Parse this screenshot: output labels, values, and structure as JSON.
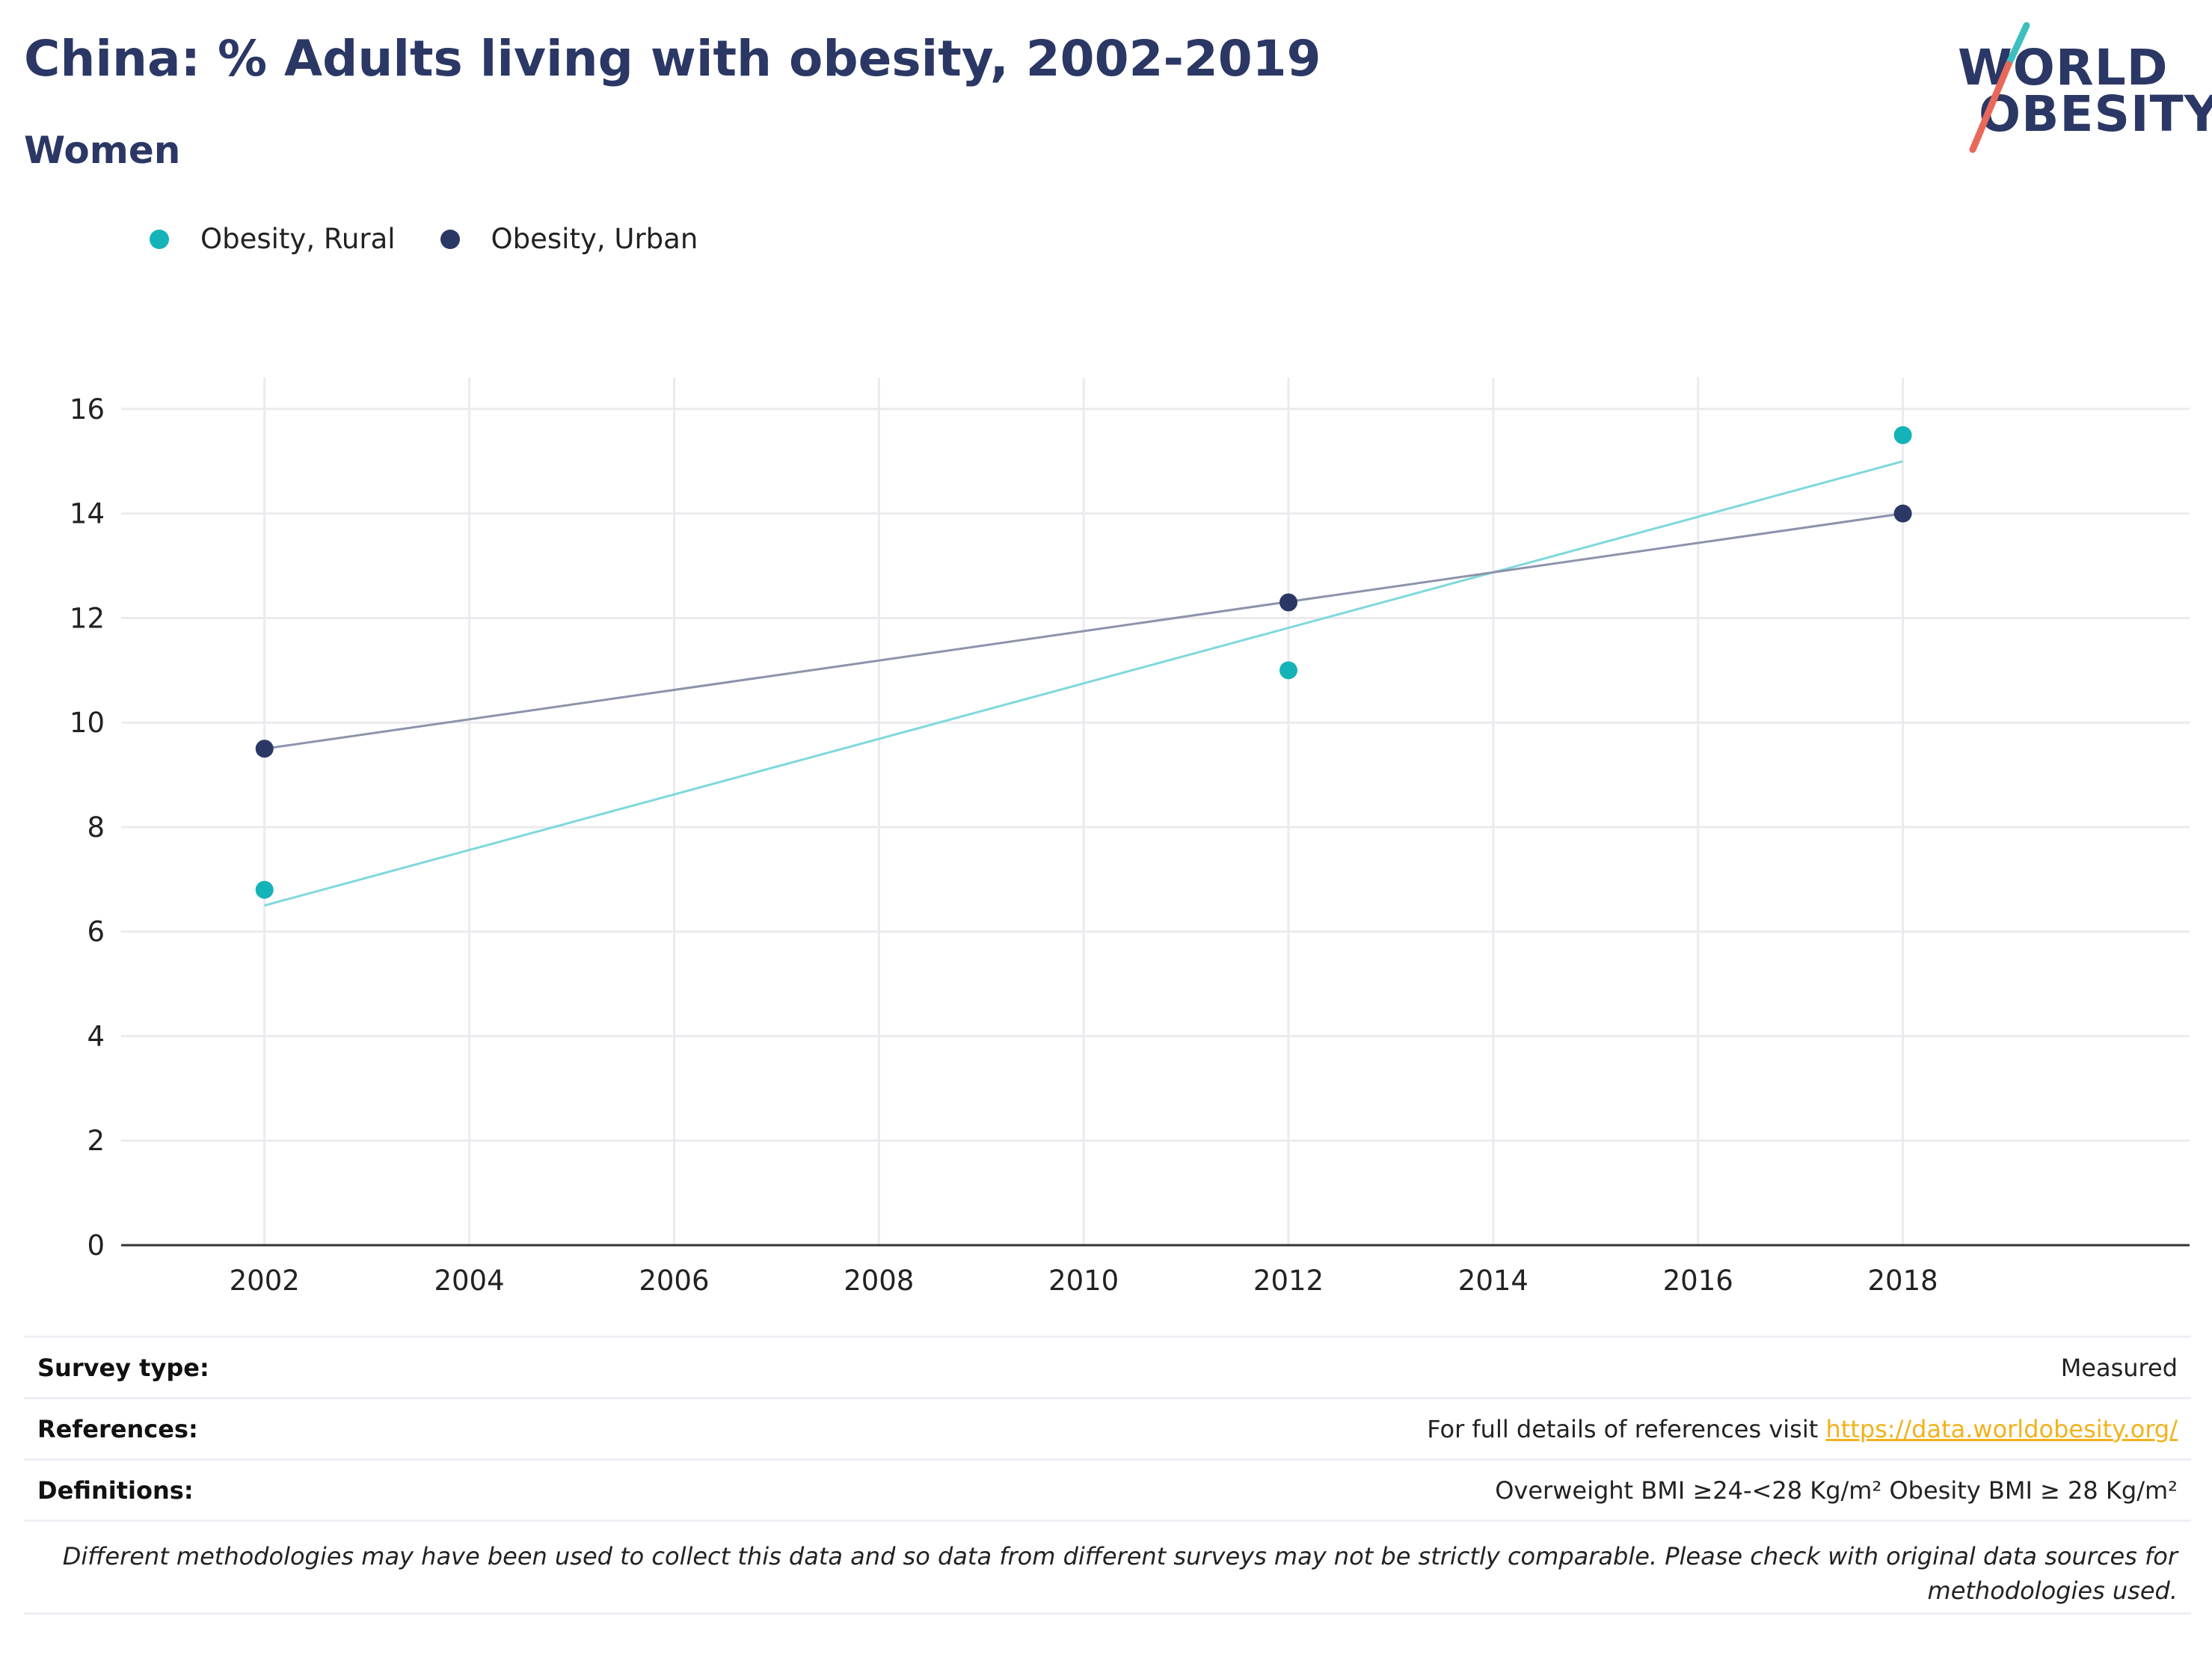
{
  "header": {
    "title": "China: % Adults living with obesity, 2002-2019",
    "subtitle": "Women"
  },
  "logo": {
    "line1": "WORLD",
    "line2": "OBESITY",
    "accent_teal": "#3dbfbf",
    "accent_coral": "#e8685a"
  },
  "colors": {
    "rural": "#14b3b8",
    "rural_trend": "#7fd8dc",
    "urban": "#2b3764",
    "urban_trend": "#8d93aa",
    "grid": "#ebebef",
    "axis": "#333333"
  },
  "chart_data": {
    "type": "scatter",
    "title": "China: % Adults living with obesity, 2002-2019",
    "subtitle": "Women",
    "xlim": [
      2000.6,
      2020.8
    ],
    "ylim": [
      0,
      16.6
    ],
    "xticks": [
      2002,
      2004,
      2006,
      2008,
      2010,
      2012,
      2014,
      2016,
      2018
    ],
    "yticks": [
      0,
      2,
      4,
      6,
      8,
      10,
      12,
      14,
      16
    ],
    "grid": true,
    "legend_position": "top-left",
    "series": [
      {
        "name": "Obesity, Rural",
        "points": [
          {
            "x": 2002,
            "y": 6.8
          },
          {
            "x": 2012,
            "y": 11.0
          },
          {
            "x": 2018,
            "y": 15.5
          }
        ],
        "trendline": [
          {
            "x": 2002,
            "y": 6.5
          },
          {
            "x": 2018,
            "y": 15.0
          }
        ]
      },
      {
        "name": "Obesity, Urban",
        "points": [
          {
            "x": 2002,
            "y": 9.5
          },
          {
            "x": 2012,
            "y": 12.3
          },
          {
            "x": 2018,
            "y": 14.0
          }
        ],
        "trendline": [
          {
            "x": 2002,
            "y": 9.5
          },
          {
            "x": 2018,
            "y": 14.0
          }
        ]
      }
    ]
  },
  "footer": {
    "survey_type_label": "Survey type:",
    "survey_type_value": "Measured",
    "references_label": "References:",
    "references_text": "For full details of references visit ",
    "references_link": "https://data.worldobesity.org/",
    "definitions_label": "Definitions:",
    "definitions_value": "Overweight BMI ≥24-<28 Kg/m² Obesity BMI ≥ 28 Kg/m²",
    "disclaimer_line1": "Different methodologies may have been used to collect this data and so data from different surveys may not be strictly comparable. Please check with original data sources for",
    "disclaimer_line2": "methodologies used."
  }
}
